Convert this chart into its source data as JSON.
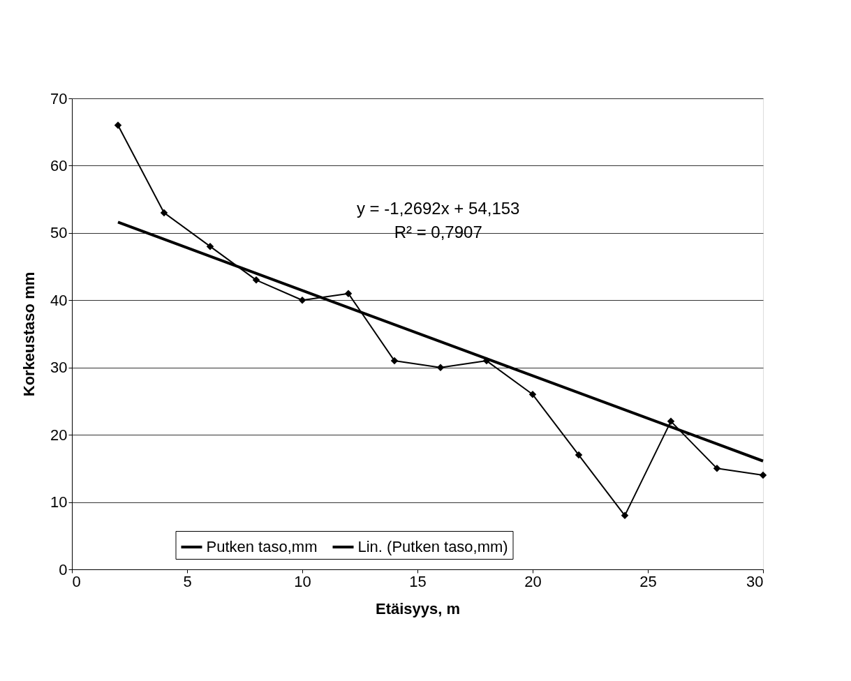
{
  "chart_data": {
    "type": "line",
    "xlabel": "Etäisyys, m",
    "ylabel": "Korkeustaso mm",
    "xlim": [
      0,
      30
    ],
    "xticks": [
      0,
      5,
      10,
      15,
      20,
      25,
      30
    ],
    "ylim": [
      0,
      70
    ],
    "yticks": [
      0,
      10,
      20,
      30,
      40,
      50,
      60,
      70
    ],
    "grid": "y",
    "legend": "bottom",
    "annotations": [
      "y = -1,2692x + 54,153",
      "R² = 0,7907"
    ],
    "series": [
      {
        "name": "Putken taso,mm",
        "color": "#000000",
        "marker": "diamond",
        "x": [
          2,
          4,
          6,
          8,
          10,
          12,
          14,
          16,
          18,
          20,
          22,
          24,
          26,
          28,
          30
        ],
        "values": [
          66,
          53,
          48,
          43,
          40,
          41,
          31,
          30,
          31,
          26,
          17,
          8,
          22,
          15,
          14
        ]
      },
      {
        "name": "Lin. (Putken taso,mm)",
        "color": "#000000",
        "marker": "none",
        "x": [
          2,
          30
        ],
        "values": [
          51.6,
          16.1
        ]
      }
    ]
  }
}
